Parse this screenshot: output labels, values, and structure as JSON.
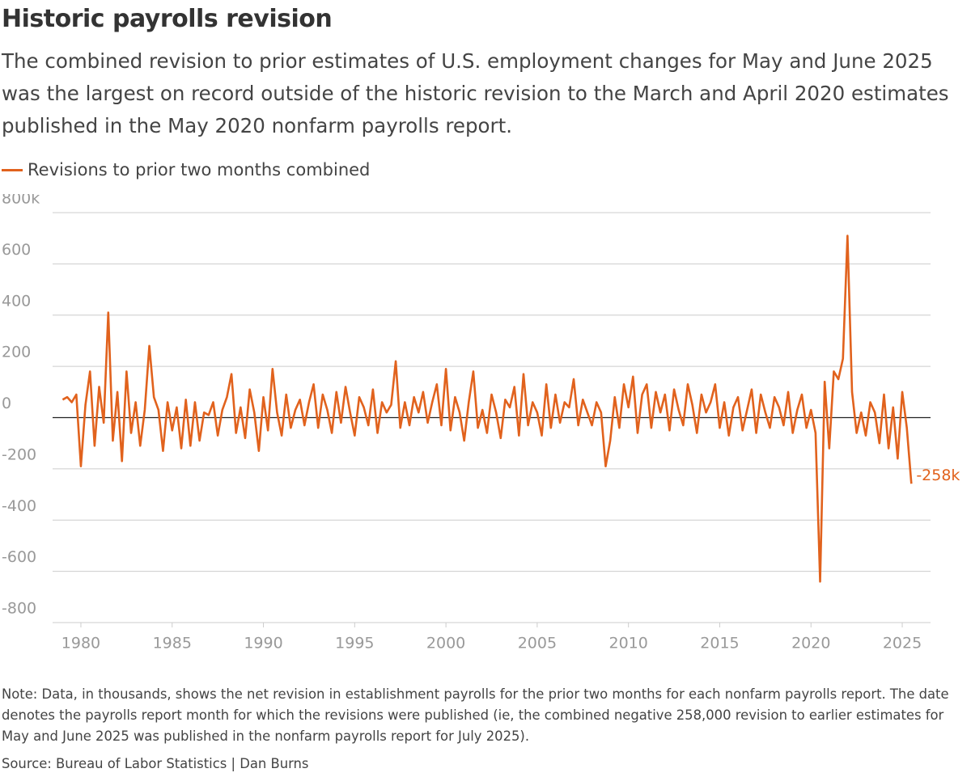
{
  "chart_data": {
    "type": "line",
    "title": "Historic payrolls revision",
    "subtitle": "The combined revision to prior estimates of U.S. employment changes for May and June 2025 was the largest on record outside of the historic revision to the March and April 2020 estimates published in the May 2020 nonfarm payrolls report.",
    "note": "Note: Data, in thousands, shows the net revision in establishment payrolls for the prior two months for each nonfarm payrolls report. The date denotes the payrolls report month for which the revisions were published (ie, the combined negative 258,000 revision to earlier estimates for May and June 2025 was published in the nonfarm payrolls report for July 2025).",
    "source": "Source: Bureau of Labor Statistics | Dan Burns",
    "end_label": "-258k",
    "xlim": [
      1978.45,
      2026.55
    ],
    "xticks": [
      1980,
      1985,
      1990,
      1995,
      2000,
      2005,
      2010,
      2015,
      2020,
      2025
    ],
    "ylim": [
      -800,
      800
    ],
    "yticks": [
      {
        "value": 800,
        "label": "800k"
      },
      600,
      400,
      200,
      0,
      -200,
      -400,
      -600,
      -800
    ],
    "grid": true,
    "x": [
      1979,
      1979.25,
      1979.5,
      1979.75,
      1980,
      1980.25,
      1980.5,
      1980.75,
      1981,
      1981.25,
      1981.5,
      1981.75,
      1982,
      1982.25,
      1982.5,
      1982.75,
      1983,
      1983.25,
      1983.5,
      1983.75,
      1984,
      1984.25,
      1984.5,
      1984.75,
      1985,
      1985.25,
      1985.5,
      1985.75,
      1986,
      1986.25,
      1986.5,
      1986.75,
      1987,
      1987.25,
      1987.5,
      1987.75,
      1988,
      1988.25,
      1988.5,
      1988.75,
      1989,
      1989.25,
      1989.5,
      1989.75,
      1990,
      1990.25,
      1990.5,
      1990.75,
      1991,
      1991.25,
      1991.5,
      1991.75,
      1992,
      1992.25,
      1992.5,
      1992.75,
      1993,
      1993.25,
      1993.5,
      1993.75,
      1994,
      1994.25,
      1994.5,
      1994.75,
      1995,
      1995.25,
      1995.5,
      1995.75,
      1996,
      1996.25,
      1996.5,
      1996.75,
      1997,
      1997.25,
      1997.5,
      1997.75,
      1998,
      1998.25,
      1998.5,
      1998.75,
      1999,
      1999.25,
      1999.5,
      1999.75,
      2000,
      2000.25,
      2000.5,
      2000.75,
      2001,
      2001.25,
      2001.5,
      2001.75,
      2002,
      2002.25,
      2002.5,
      2002.75,
      2003,
      2003.25,
      2003.5,
      2003.75,
      2004,
      2004.25,
      2004.5,
      2004.75,
      2005,
      2005.25,
      2005.5,
      2005.75,
      2006,
      2006.25,
      2006.5,
      2006.75,
      2007,
      2007.25,
      2007.5,
      2007.75,
      2008,
      2008.25,
      2008.5,
      2008.75,
      2009,
      2009.25,
      2009.5,
      2009.75,
      2010,
      2010.25,
      2010.5,
      2010.75,
      2011,
      2011.25,
      2011.5,
      2011.75,
      2012,
      2012.25,
      2012.5,
      2012.75,
      2013,
      2013.25,
      2013.5,
      2013.75,
      2014,
      2014.25,
      2014.5,
      2014.75,
      2015,
      2015.25,
      2015.5,
      2015.75,
      2016,
      2016.25,
      2016.5,
      2016.75,
      2017,
      2017.25,
      2017.5,
      2017.75,
      2018,
      2018.25,
      2018.5,
      2018.75,
      2019,
      2019.25,
      2019.5,
      2019.75,
      2020,
      2020.25,
      2020.5,
      2020.75,
      2021,
      2021.25,
      2021.5,
      2021.75,
      2022,
      2022.25,
      2022.5,
      2022.75,
      2023,
      2023.25,
      2023.5,
      2023.75,
      2024,
      2024.25,
      2024.5,
      2024.75,
      2025,
      2025.25,
      2025.5
    ],
    "series": [
      {
        "name": "Revisions to prior two months combined",
        "color": "#e1621d",
        "values": [
          70,
          80,
          60,
          90,
          -190,
          50,
          180,
          -110,
          120,
          -20,
          410,
          -90,
          100,
          -170,
          180,
          -60,
          60,
          -110,
          30,
          280,
          80,
          30,
          -130,
          60,
          -50,
          40,
          -120,
          70,
          -110,
          60,
          -90,
          20,
          10,
          60,
          -70,
          30,
          80,
          170,
          -60,
          40,
          -80,
          110,
          20,
          -130,
          80,
          -50,
          190,
          20,
          -70,
          90,
          -40,
          30,
          70,
          -30,
          60,
          130,
          -40,
          90,
          30,
          -60,
          100,
          -20,
          120,
          20,
          -70,
          80,
          40,
          -30,
          110,
          -60,
          60,
          20,
          50,
          220,
          -40,
          60,
          -30,
          80,
          20,
          100,
          -20,
          60,
          130,
          -30,
          190,
          -50,
          80,
          20,
          -90,
          60,
          180,
          -40,
          30,
          -60,
          90,
          20,
          -80,
          70,
          40,
          120,
          -70,
          170,
          -30,
          60,
          20,
          -70,
          130,
          -40,
          90,
          -20,
          60,
          40,
          150,
          -30,
          70,
          20,
          -30,
          60,
          20,
          -190,
          -90,
          80,
          -40,
          130,
          40,
          160,
          -60,
          90,
          130,
          -40,
          100,
          20,
          90,
          -50,
          110,
          30,
          -30,
          130,
          50,
          -60,
          90,
          20,
          60,
          130,
          -40,
          60,
          -70,
          40,
          80,
          -50,
          30,
          110,
          -60,
          90,
          20,
          -40,
          80,
          40,
          -30,
          100,
          -60,
          30,
          90,
          -40,
          30,
          -60,
          -640,
          140,
          -120,
          180,
          150,
          230,
          710,
          100,
          -60,
          20,
          -70,
          60,
          20,
          -100,
          90,
          -120,
          40,
          -160,
          100,
          -40,
          -258
        ]
      }
    ]
  }
}
